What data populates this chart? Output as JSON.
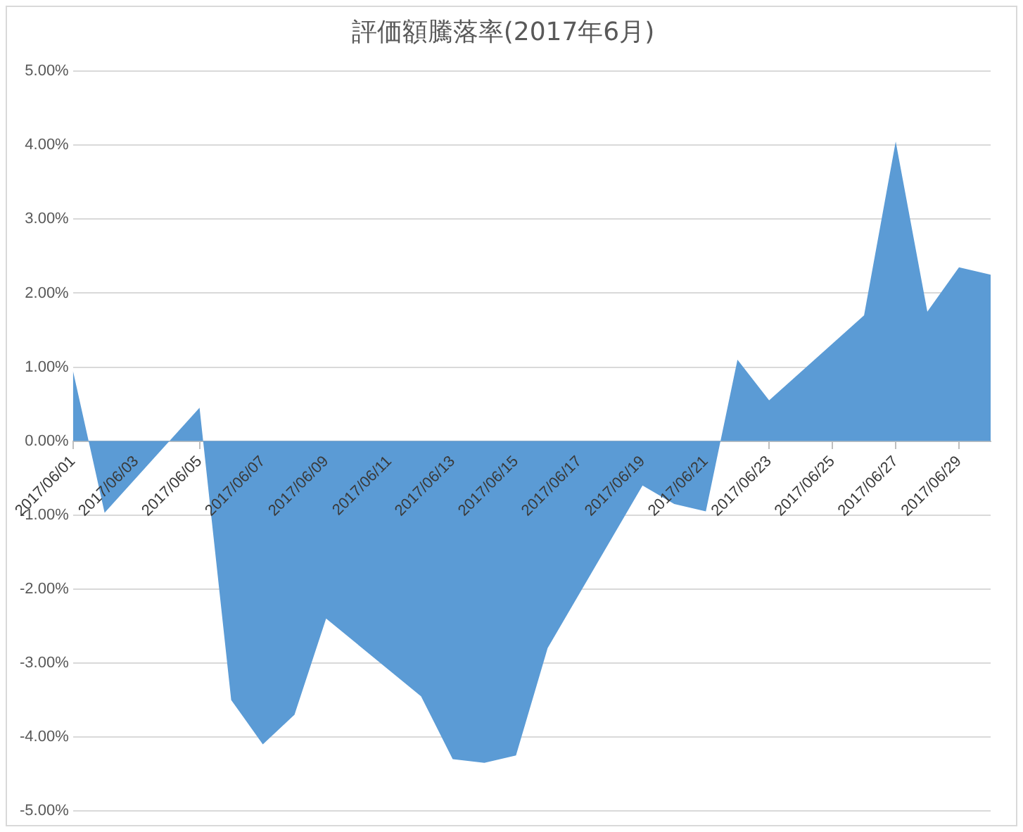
{
  "chart_data": {
    "type": "area",
    "title": "評価額騰落率(2017年6月)",
    "x": [
      "2017-06-01",
      "2017-06-02",
      "2017-06-05",
      "2017-06-06",
      "2017-06-07",
      "2017-06-08",
      "2017-06-09",
      "2017-06-12",
      "2017-06-13",
      "2017-06-14",
      "2017-06-15",
      "2017-06-16",
      "2017-06-19",
      "2017-06-20",
      "2017-06-21",
      "2017-06-22",
      "2017-06-23",
      "2017-06-26",
      "2017-06-27",
      "2017-06-28",
      "2017-06-29",
      "2017-06-30"
    ],
    "values": [
      0.95,
      -0.97,
      0.45,
      -3.5,
      -4.1,
      -3.7,
      -2.4,
      -3.45,
      -4.3,
      -4.35,
      -4.25,
      -2.8,
      -0.6,
      -0.85,
      -0.95,
      1.1,
      0.55,
      1.7,
      4.05,
      1.75,
      2.35,
      2.25
    ],
    "color": "#5b9bd5",
    "xlim": [
      "2017-06-01",
      "2017-06-30"
    ],
    "xticks": [
      {
        "value": "2017-06-01",
        "label": "2017/06/01"
      },
      {
        "value": "2017-06-03",
        "label": "2017/06/03"
      },
      {
        "value": "2017-06-05",
        "label": "2017/06/05"
      },
      {
        "value": "2017-06-07",
        "label": "2017/06/07"
      },
      {
        "value": "2017-06-09",
        "label": "2017/06/09"
      },
      {
        "value": "2017-06-11",
        "label": "2017/06/11"
      },
      {
        "value": "2017-06-13",
        "label": "2017/06/13"
      },
      {
        "value": "2017-06-15",
        "label": "2017/06/15"
      },
      {
        "value": "2017-06-17",
        "label": "2017/06/17"
      },
      {
        "value": "2017-06-19",
        "label": "2017/06/19"
      },
      {
        "value": "2017-06-21",
        "label": "2017/06/21"
      },
      {
        "value": "2017-06-23",
        "label": "2017/06/23"
      },
      {
        "value": "2017-06-25",
        "label": "2017/06/25"
      },
      {
        "value": "2017-06-27",
        "label": "2017/06/27"
      },
      {
        "value": "2017-06-29",
        "label": "2017/06/29"
      }
    ],
    "ylim": [
      -5,
      5
    ],
    "yticks": [
      {
        "value": -5,
        "label": "-5.00%"
      },
      {
        "value": -4,
        "label": "-4.00%"
      },
      {
        "value": -3,
        "label": "-3.00%"
      },
      {
        "value": -2,
        "label": "-2.00%"
      },
      {
        "value": -1,
        "label": "-1.00%"
      },
      {
        "value": 0,
        "label": "0.00%"
      },
      {
        "value": 1,
        "label": "1.00%"
      },
      {
        "value": 2,
        "label": "2.00%"
      },
      {
        "value": 3,
        "label": "3.00%"
      },
      {
        "value": 4,
        "label": "4.00%"
      },
      {
        "value": 5,
        "label": "5.00%"
      }
    ],
    "grid": "y",
    "legend": false
  }
}
